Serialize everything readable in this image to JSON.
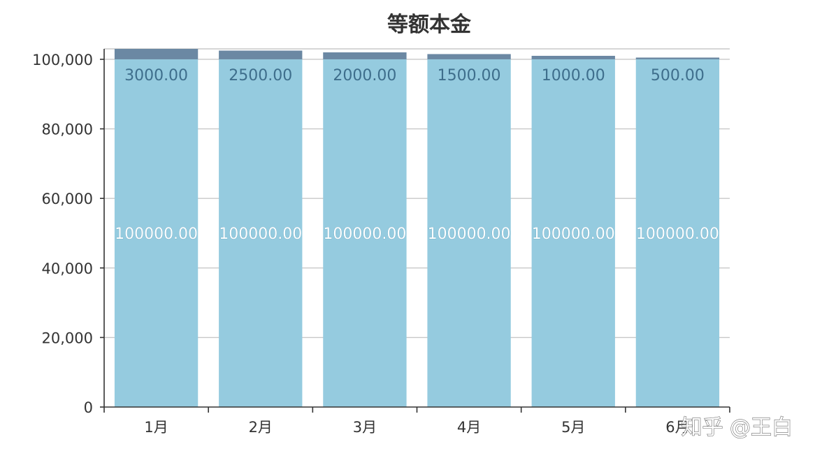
{
  "watermark": "知乎 @王白",
  "colors": {
    "principal": "#95cbdf",
    "interest": "#6b88a3",
    "grid": "#c8c8c8",
    "axis": "#333333"
  },
  "chart_data": {
    "type": "bar",
    "stacked": true,
    "title": "等额本金",
    "xlabel": "",
    "ylabel": "",
    "categories": [
      "1月",
      "2月",
      "3月",
      "4月",
      "5月",
      "6月"
    ],
    "series": [
      {
        "values": [
          100000,
          100000,
          100000,
          100000,
          100000,
          100000
        ],
        "labels": [
          "100000.00",
          "100000.00",
          "100000.00",
          "100000.00",
          "100000.00",
          "100000.00"
        ],
        "color": "#95cbdf"
      },
      {
        "values": [
          3000,
          2500,
          2000,
          1500,
          1000,
          500
        ],
        "labels": [
          "3000.00",
          "2500.00",
          "2000.00",
          "1500.00",
          "1000.00",
          "500.00"
        ],
        "color": "#6b88a3"
      }
    ],
    "ylim": [
      0,
      103000
    ],
    "yticks": [
      0,
      20000,
      40000,
      60000,
      80000,
      100000
    ],
    "ytick_labels": [
      "0",
      "20,000",
      "40,000",
      "60,000",
      "80,000",
      "100,000"
    ],
    "grid": true,
    "legend": "none"
  }
}
